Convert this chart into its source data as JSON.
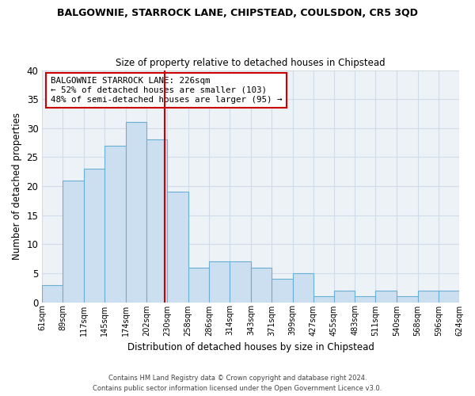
{
  "title": "BALGOWNIE, STARROCK LANE, CHIPSTEAD, COULSDON, CR5 3QD",
  "subtitle": "Size of property relative to detached houses in Chipstead",
  "xlabel": "Distribution of detached houses by size in Chipstead",
  "ylabel": "Number of detached properties",
  "bar_color": "#ccdff0",
  "bar_edge_color": "#6aafd4",
  "grid_color": "#d0dce8",
  "background_color": "#edf2f7",
  "marker_line_value": 226,
  "marker_line_color": "#cc0000",
  "bins": [
    61,
    89,
    117,
    145,
    174,
    202,
    230,
    258,
    286,
    314,
    343,
    371,
    399,
    427,
    455,
    483,
    511,
    540,
    568,
    596,
    624
  ],
  "counts": [
    3,
    21,
    23,
    27,
    31,
    28,
    19,
    6,
    7,
    7,
    6,
    4,
    5,
    1,
    2,
    1,
    2,
    1,
    2,
    2
  ],
  "ylim": [
    0,
    40
  ],
  "yticks": [
    0,
    5,
    10,
    15,
    20,
    25,
    30,
    35,
    40
  ],
  "annotation_title": "BALGOWNIE STARROCK LANE: 226sqm",
  "annotation_line1": "← 52% of detached houses are smaller (103)",
  "annotation_line2": "48% of semi-detached houses are larger (95) →",
  "annotation_box_edge": "#cc0000",
  "footer_line1": "Contains HM Land Registry data © Crown copyright and database right 2024.",
  "footer_line2": "Contains public sector information licensed under the Open Government Licence v3.0."
}
